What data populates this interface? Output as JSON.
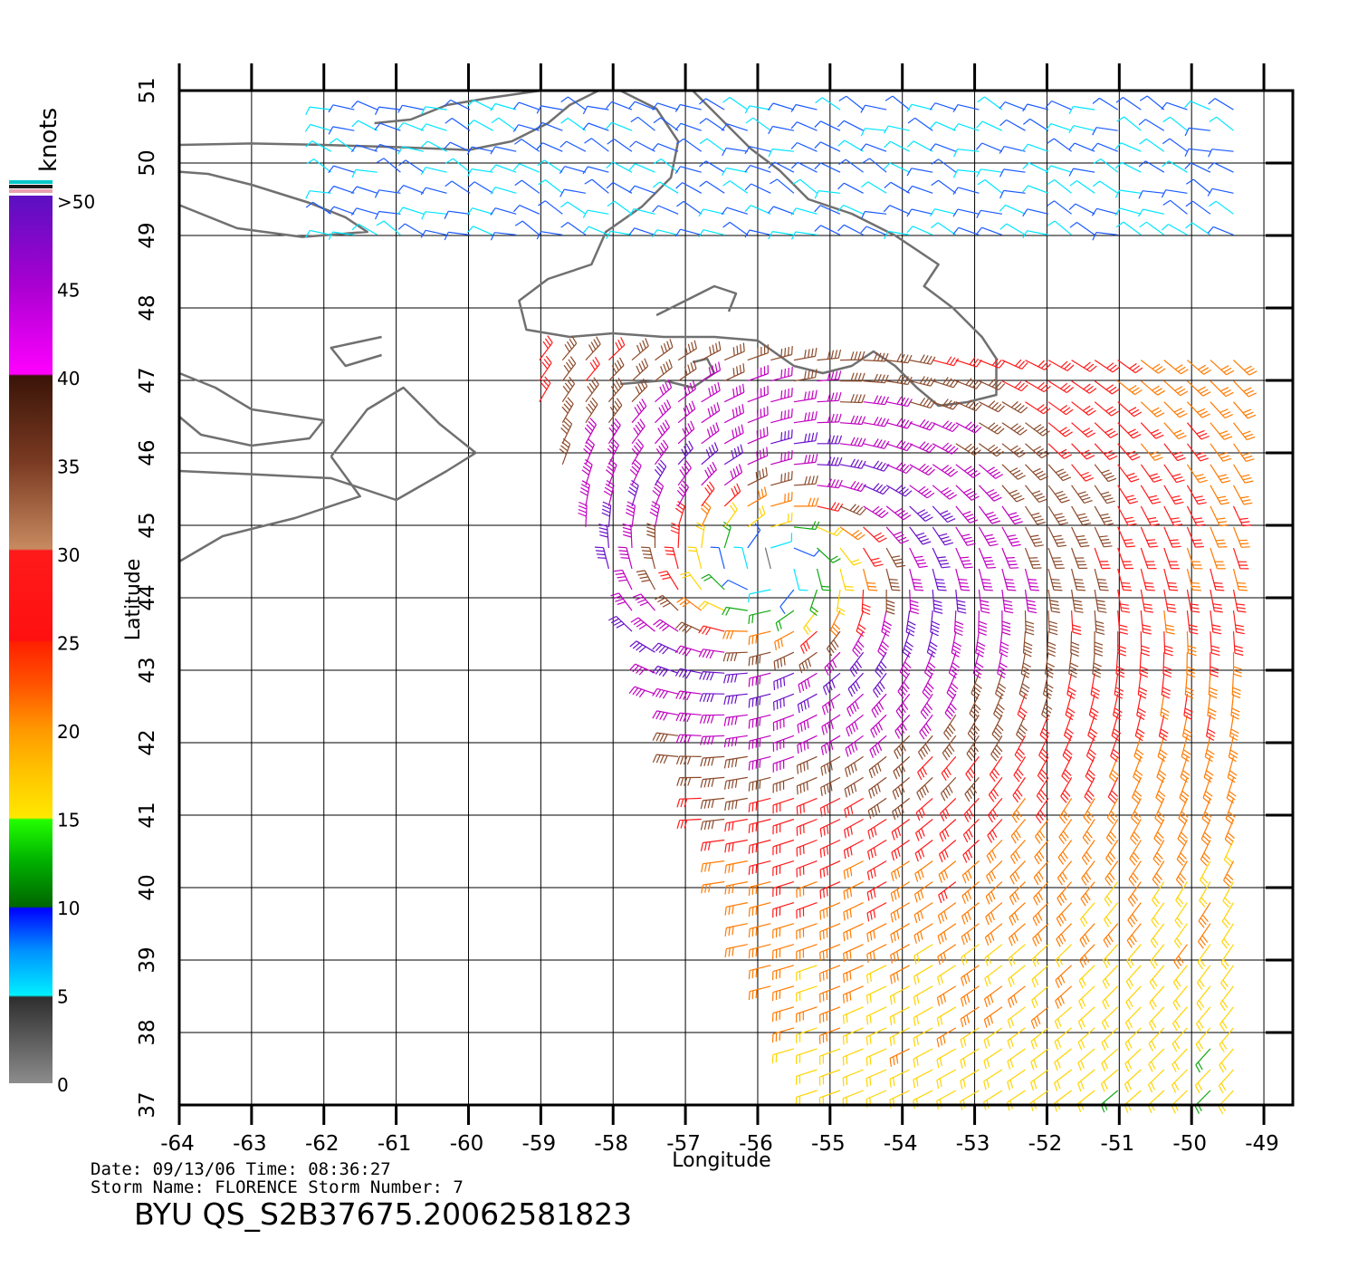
{
  "map": {
    "axes": {
      "x_label": "Longitude",
      "y_label": "Latitude",
      "lon_range": [
        -64,
        -48.6
      ],
      "lat_range": [
        37,
        51
      ],
      "lon_ticks": [
        "-64",
        "-63",
        "-62",
        "-61",
        "-60",
        "-59",
        "-58",
        "-57",
        "-56",
        "-55",
        "-54",
        "-53",
        "-52",
        "-51",
        "-50",
        "-49"
      ],
      "lat_ticks": [
        "37",
        "38",
        "39",
        "40",
        "41",
        "42",
        "43",
        "44",
        "45",
        "46",
        "47",
        "48",
        "49",
        "50",
        "51"
      ]
    },
    "colorbar": {
      "unit_label": "knots",
      "labels": [
        ">50",
        "45",
        "40",
        "35",
        "30",
        "25",
        "20",
        "15",
        "10",
        "5",
        "0"
      ],
      "colors": {
        "gray": "#6e6e6e",
        "cyan": "#00e5ff",
        "blue": "#1a5aff",
        "green": "#11a811",
        "yellow": "#ffd400",
        "orange": "#ff7a00",
        "red": "#ff1a1a",
        "brown": "#8b4a2b",
        "magenta": "#c000c0",
        "purple": "#6a10c8"
      }
    },
    "storm_center": {
      "lon": -55.8,
      "lat": 44.4
    },
    "info": {
      "line1": "Date: 09/13/06   Time: 08:36:27",
      "line2": "Storm Name: FLORENCE   Storm Number: 7",
      "product_id": "BYU  QS_S2B37675.20062581823"
    }
  }
}
